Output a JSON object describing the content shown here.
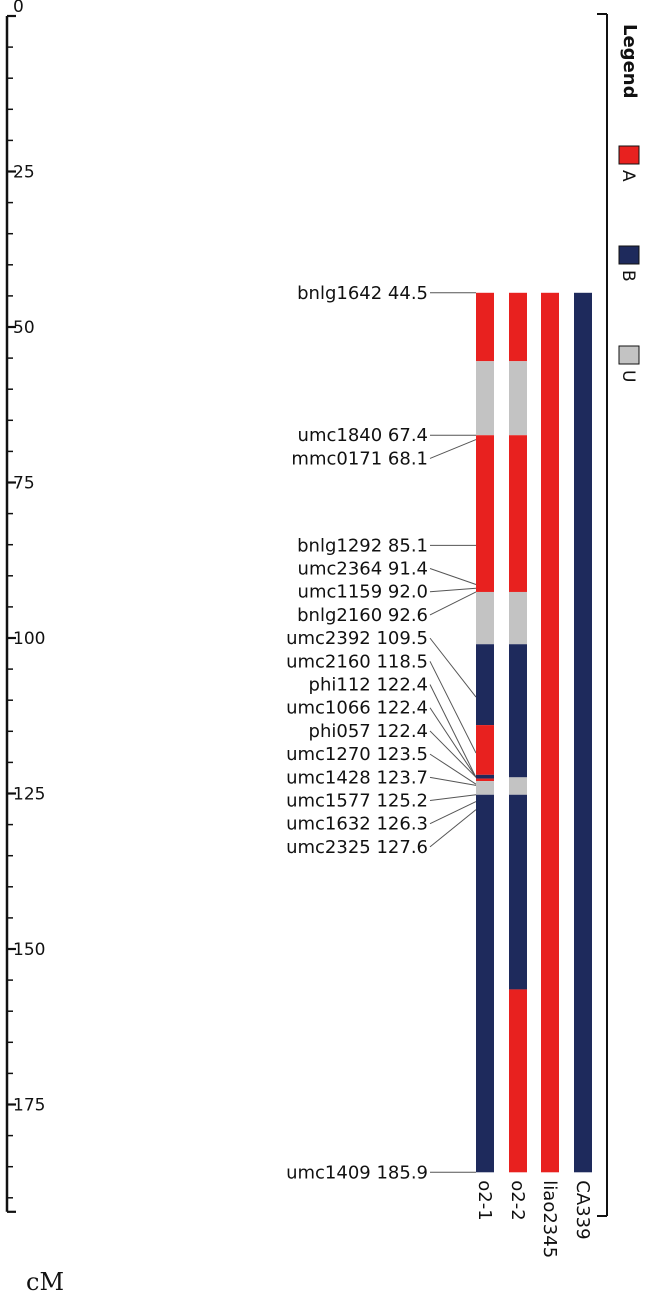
{
  "axis": {
    "unit": "cM",
    "min": 0,
    "max": 190,
    "major_ticks": [
      0,
      25,
      50,
      75,
      100,
      125,
      150,
      175
    ],
    "minor_step": 5
  },
  "markers": [
    {
      "name": "bnlg1642",
      "pos": "44.5",
      "cm": 44.5
    },
    {
      "name": "umc1840",
      "pos": "67.4",
      "cm": 67.4
    },
    {
      "name": "mmc0171",
      "pos": "68.1",
      "cm": 68.1
    },
    {
      "name": "bnlg1292",
      "pos": "85.1",
      "cm": 85.1
    },
    {
      "name": "umc2364",
      "pos": "91.4",
      "cm": 91.4
    },
    {
      "name": "umc1159",
      "pos": "92.0",
      "cm": 92.0
    },
    {
      "name": "bnlg2160",
      "pos": "92.6",
      "cm": 92.6
    },
    {
      "name": "umc2392",
      "pos": "109.5",
      "cm": 109.5
    },
    {
      "name": "umc2160",
      "pos": "118.5",
      "cm": 118.5
    },
    {
      "name": "phi112",
      "pos": "122.4",
      "cm": 122.4
    },
    {
      "name": "umc1066",
      "pos": "122.4",
      "cm": 122.4
    },
    {
      "name": "phi057",
      "pos": "122.4",
      "cm": 122.4
    },
    {
      "name": "umc1270",
      "pos": "123.5",
      "cm": 123.5
    },
    {
      "name": "umc1428",
      "pos": "123.7",
      "cm": 123.7
    },
    {
      "name": "umc1577",
      "pos": "125.2",
      "cm": 125.2
    },
    {
      "name": "umc1632",
      "pos": "126.3",
      "cm": 126.3
    },
    {
      "name": "umc2325",
      "pos": "127.6",
      "cm": 127.6
    },
    {
      "name": "umc1409",
      "pos": "185.9",
      "cm": 185.9
    }
  ],
  "lines": [
    {
      "name": "o2-1",
      "segments": [
        {
          "from": 44.5,
          "to": 55.5,
          "g": "A"
        },
        {
          "from": 55.5,
          "to": 67.4,
          "g": "U"
        },
        {
          "from": 67.4,
          "to": 92.6,
          "g": "A"
        },
        {
          "from": 92.6,
          "to": 101.0,
          "g": "U"
        },
        {
          "from": 101.0,
          "to": 114.0,
          "g": "B"
        },
        {
          "from": 114.0,
          "to": 122.0,
          "g": "A"
        },
        {
          "from": 122.0,
          "to": 122.6,
          "g": "B"
        },
        {
          "from": 122.6,
          "to": 123.0,
          "g": "A"
        },
        {
          "from": 123.0,
          "to": 125.2,
          "g": "U"
        },
        {
          "from": 125.2,
          "to": 185.9,
          "g": "B"
        }
      ]
    },
    {
      "name": "o2-2",
      "segments": [
        {
          "from": 44.5,
          "to": 55.5,
          "g": "A"
        },
        {
          "from": 55.5,
          "to": 67.4,
          "g": "U"
        },
        {
          "from": 67.4,
          "to": 92.6,
          "g": "A"
        },
        {
          "from": 92.6,
          "to": 101.0,
          "g": "U"
        },
        {
          "from": 101.0,
          "to": 122.4,
          "g": "B"
        },
        {
          "from": 122.4,
          "to": 125.2,
          "g": "U"
        },
        {
          "from": 125.2,
          "to": 156.5,
          "g": "B"
        },
        {
          "from": 156.5,
          "to": 185.9,
          "g": "A"
        }
      ]
    },
    {
      "name": "liao2345",
      "segments": [
        {
          "from": 44.5,
          "to": 185.9,
          "g": "A"
        }
      ]
    },
    {
      "name": "CA339",
      "segments": [
        {
          "from": 44.5,
          "to": 185.9,
          "g": "B"
        }
      ]
    }
  ],
  "legend": {
    "title": "Legend",
    "items": [
      {
        "key": "A",
        "label": "A",
        "color": "#e8211f"
      },
      {
        "key": "B",
        "label": "B",
        "color": "#1e2a5c"
      },
      {
        "key": "U",
        "label": "U",
        "color": "#c3c3c3"
      }
    ]
  }
}
